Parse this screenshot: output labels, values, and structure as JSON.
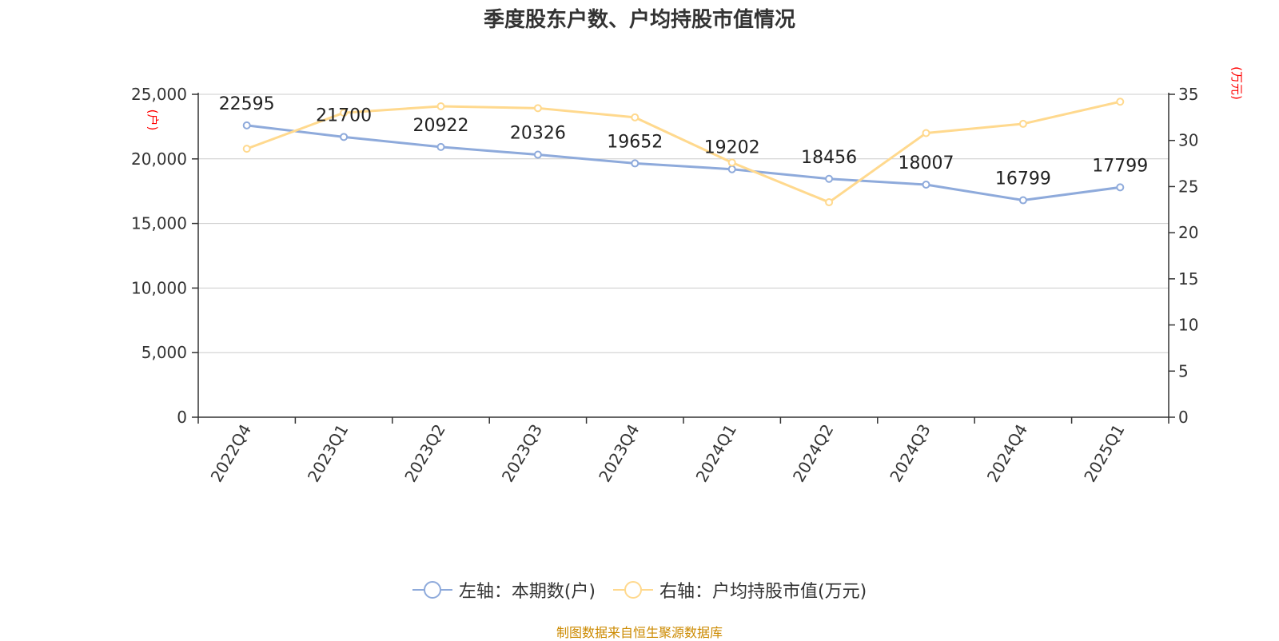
{
  "chart_data": {
    "type": "line",
    "title": "季度股东户数、户均持股市值情况",
    "categories": [
      "2022Q4",
      "2023Q1",
      "2023Q2",
      "2023Q3",
      "2023Q4",
      "2024Q1",
      "2024Q2",
      "2024Q3",
      "2024Q4",
      "2025Q1"
    ],
    "series": [
      {
        "name": "左轴：本期数(户)",
        "axis": "left",
        "color": "#8eaadb",
        "values": [
          22595,
          21700,
          20922,
          20326,
          19652,
          19202,
          18456,
          18007,
          16799,
          17799
        ],
        "data_labels": [
          "22595",
          "21700",
          "20922",
          "20326",
          "19652",
          "19202",
          "18456",
          "18007",
          "16799",
          "17799"
        ]
      },
      {
        "name": "右轴：户均持股市值(万元)",
        "axis": "right",
        "color": "#ffd98e",
        "values": [
          29.1,
          33.0,
          33.7,
          33.5,
          32.5,
          27.6,
          23.3,
          30.8,
          31.8,
          34.2
        ]
      }
    ],
    "y_left": {
      "unit": "(户)",
      "ylim": [
        0,
        25000
      ],
      "ticks": [
        0,
        5000,
        10000,
        15000,
        20000,
        25000
      ],
      "tick_labels": [
        "0",
        "5,000",
        "10,000",
        "15,000",
        "20,000",
        "25,000"
      ]
    },
    "y_right": {
      "unit": "(万元)",
      "ylim": [
        0,
        35
      ],
      "ticks": [
        0,
        5,
        10,
        15,
        20,
        25,
        30,
        35
      ],
      "tick_labels": [
        "0",
        "5",
        "10",
        "15",
        "20",
        "25",
        "30",
        "35"
      ]
    },
    "grid": true,
    "legend_position": "bottom"
  },
  "source": "制图数据来自恒生聚源数据库"
}
